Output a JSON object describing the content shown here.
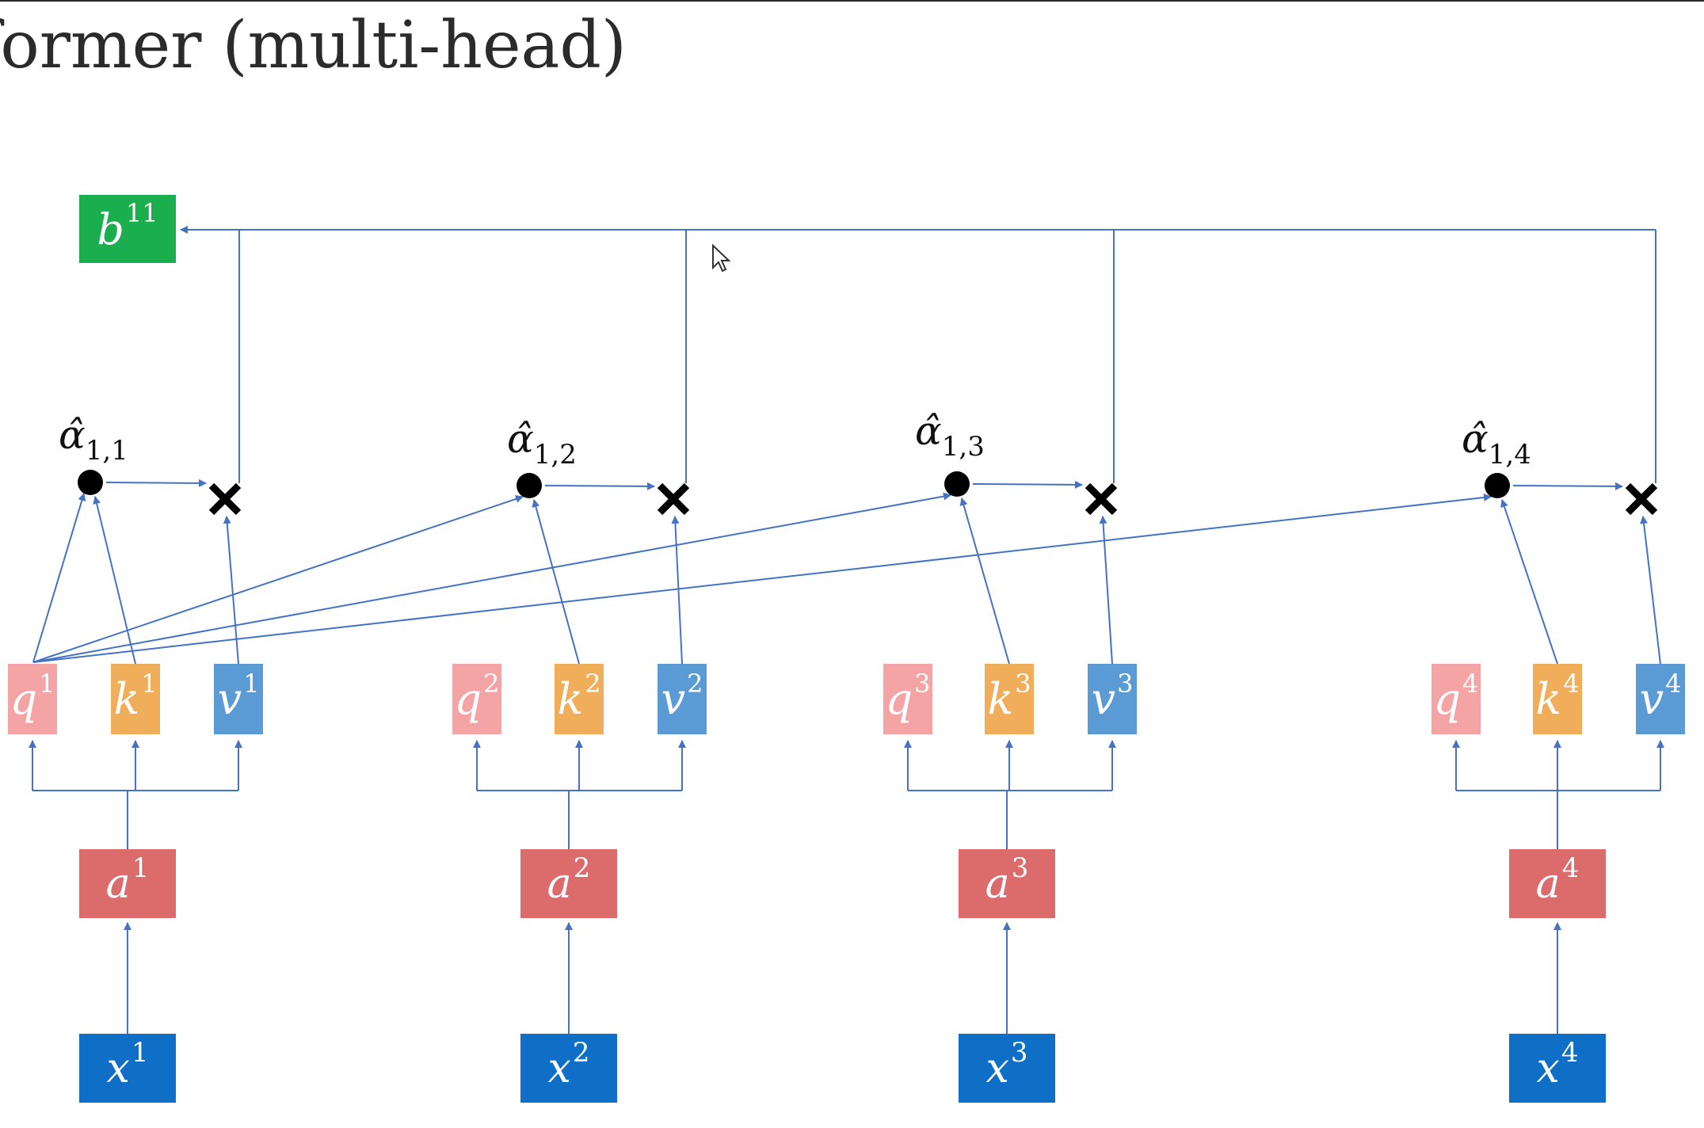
{
  "title": "former (multi-head)",
  "output": {
    "base": "b",
    "sup": "11"
  },
  "columns": [
    {
      "x": {
        "base": "x",
        "sup": "1"
      },
      "a": {
        "base": "a",
        "sup": "1"
      },
      "q": {
        "base": "q",
        "sup": "1"
      },
      "k": {
        "base": "k",
        "sup": "1"
      },
      "v": {
        "base": "v",
        "sup": "1"
      },
      "alpha": {
        "base": "α̂",
        "sub": "1,1"
      }
    },
    {
      "x": {
        "base": "x",
        "sup": "2"
      },
      "a": {
        "base": "a",
        "sup": "2"
      },
      "q": {
        "base": "q",
        "sup": "2"
      },
      "k": {
        "base": "k",
        "sup": "2"
      },
      "v": {
        "base": "v",
        "sup": "2"
      },
      "alpha": {
        "base": "α̂",
        "sub": "1,2"
      }
    },
    {
      "x": {
        "base": "x",
        "sup": "3"
      },
      "a": {
        "base": "a",
        "sup": "3"
      },
      "q": {
        "base": "q",
        "sup": "3"
      },
      "k": {
        "base": "k",
        "sup": "3"
      },
      "v": {
        "base": "v",
        "sup": "3"
      },
      "alpha": {
        "base": "α̂",
        "sub": "1,3"
      }
    },
    {
      "x": {
        "base": "x",
        "sup": "4"
      },
      "a": {
        "base": "a",
        "sup": "4"
      },
      "q": {
        "base": "q",
        "sup": "4"
      },
      "k": {
        "base": "k",
        "sup": "4"
      },
      "v": {
        "base": "v",
        "sup": "4"
      },
      "alpha": {
        "base": "α̂",
        "sub": "1,4"
      }
    }
  ],
  "colors": {
    "x": "#0f6fc6",
    "a": "#dc6b6b",
    "q": "#f4a4a4",
    "k": "#f0ad5a",
    "v": "#5b9bd5",
    "b": "#1aae4e",
    "arrow": "#4472c4"
  }
}
